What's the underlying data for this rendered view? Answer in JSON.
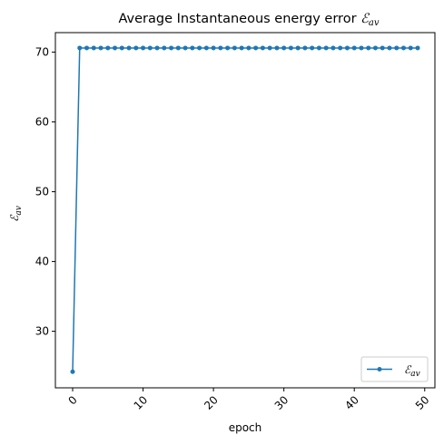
{
  "chart_data": {
    "type": "line",
    "title_text": "Average Instantaneous energy error ",
    "title_symbol": "ℰ",
    "title_subscript": "av",
    "xlabel": "epoch",
    "ylabel_symbol": "ℰ",
    "ylabel_subscript": "av",
    "xlim": [
      -2.45,
      51.45
    ],
    "ylim": [
      21.9,
      72.8
    ],
    "xticks": [
      0,
      10,
      20,
      30,
      40,
      50
    ],
    "xtick_labels": [
      "0",
      "10",
      "20",
      "30",
      "40",
      "50"
    ],
    "yticks": [
      30,
      40,
      50,
      60,
      70
    ],
    "ytick_labels": [
      "30",
      "40",
      "50",
      "60",
      "70"
    ],
    "xtick_rotation": 45,
    "grid": false,
    "legend_position": "lower right",
    "series": [
      {
        "name_symbol": "ℰ",
        "name_subscript": "av",
        "color": "#1f77b4",
        "marker": "circle",
        "x": [
          0,
          1,
          2,
          3,
          4,
          5,
          6,
          7,
          8,
          9,
          10,
          11,
          12,
          13,
          14,
          15,
          16,
          17,
          18,
          19,
          20,
          21,
          22,
          23,
          24,
          25,
          26,
          27,
          28,
          29,
          30,
          31,
          32,
          33,
          34,
          35,
          36,
          37,
          38,
          39,
          40,
          41,
          42,
          43,
          44,
          45,
          46,
          47,
          48,
          49
        ],
        "y": [
          24.2,
          70.6,
          70.6,
          70.6,
          70.6,
          70.6,
          70.6,
          70.6,
          70.6,
          70.6,
          70.6,
          70.6,
          70.6,
          70.6,
          70.6,
          70.6,
          70.6,
          70.6,
          70.6,
          70.6,
          70.6,
          70.6,
          70.6,
          70.6,
          70.6,
          70.6,
          70.6,
          70.6,
          70.6,
          70.6,
          70.6,
          70.6,
          70.6,
          70.6,
          70.6,
          70.6,
          70.6,
          70.6,
          70.6,
          70.6,
          70.6,
          70.6,
          70.6,
          70.6,
          70.6,
          70.6,
          70.6,
          70.6,
          70.6,
          70.6
        ]
      }
    ]
  }
}
